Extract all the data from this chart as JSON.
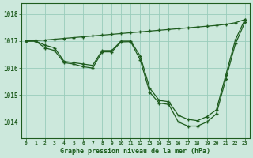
{
  "title": "Graphe pression niveau de la mer (hPa)",
  "background_color": "#cce8dc",
  "grid_color": "#99ccbb",
  "line_color": "#1e5c1e",
  "xlim": [
    -0.5,
    23.5
  ],
  "ylim": [
    1013.4,
    1018.4
  ],
  "yticks": [
    1014,
    1015,
    1016,
    1017,
    1018
  ],
  "xticks": [
    0,
    1,
    2,
    3,
    4,
    5,
    6,
    7,
    8,
    9,
    10,
    11,
    12,
    13,
    14,
    15,
    16,
    17,
    18,
    19,
    20,
    21,
    22,
    23
  ],
  "series1": [
    1017.0,
    1017.0,
    1016.85,
    1016.75,
    1016.25,
    1016.2,
    1016.15,
    1016.1,
    1016.65,
    1016.65,
    1017.0,
    1017.0,
    1016.45,
    1015.25,
    1014.8,
    1014.75,
    1014.25,
    1014.1,
    1014.05,
    1014.2,
    1014.45,
    1015.75,
    1017.05,
    1017.8
  ],
  "series2": [
    1017.0,
    1017.0,
    1016.75,
    1016.65,
    1016.2,
    1016.15,
    1016.05,
    1016.0,
    1016.6,
    1016.6,
    1016.97,
    1016.98,
    1016.3,
    1015.1,
    1014.7,
    1014.65,
    1014.0,
    1013.85,
    1013.85,
    1014.0,
    1014.3,
    1015.6,
    1016.9,
    1017.7
  ],
  "series3": [
    1017.0,
    1017.02,
    1017.04,
    1017.07,
    1017.1,
    1017.13,
    1017.16,
    1017.19,
    1017.22,
    1017.25,
    1017.28,
    1017.31,
    1017.34,
    1017.37,
    1017.4,
    1017.43,
    1017.46,
    1017.49,
    1017.52,
    1017.55,
    1017.58,
    1017.62,
    1017.68,
    1017.8
  ],
  "figsize": [
    3.2,
    2.0
  ],
  "dpi": 100
}
